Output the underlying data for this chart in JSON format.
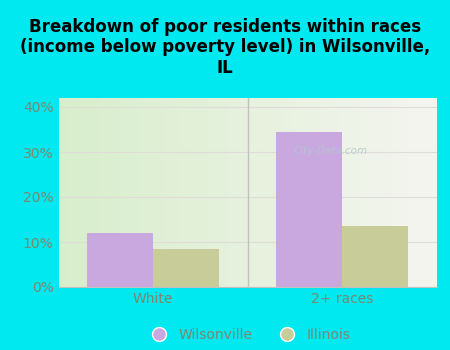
{
  "title": "Breakdown of poor residents within races\n(income below poverty level) in Wilsonville,\nIL",
  "categories": [
    "White",
    "2+ races"
  ],
  "wilsonville_values": [
    12,
    34.5
  ],
  "illinois_values": [
    8.5,
    13.5
  ],
  "wilsonville_color": "#c9a8e0",
  "illinois_color": "#c8cc99",
  "background_color": "#00e8f0",
  "ylim": [
    0,
    42
  ],
  "yticks": [
    0,
    10,
    20,
    30,
    40
  ],
  "ytick_labels": [
    "0%",
    "10%",
    "20%",
    "30%",
    "40%"
  ],
  "bar_width": 0.35,
  "legend_labels": [
    "Wilsonville",
    "Illinois"
  ],
  "watermark": "City-Data.com",
  "title_fontsize": 12,
  "tick_color": "#7a8870",
  "tick_fontsize": 10,
  "grid_color": "#e0ddd8",
  "divider_color": "#c0c0c0"
}
